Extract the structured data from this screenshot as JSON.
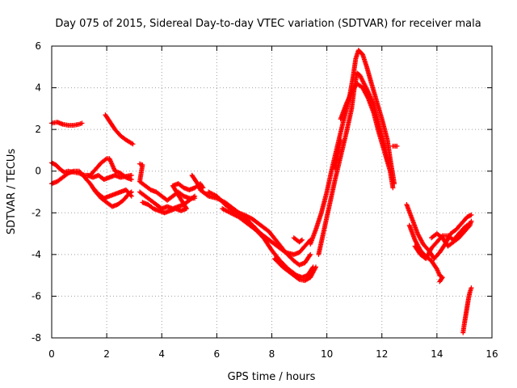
{
  "chart_data": {
    "type": "scatter",
    "title": "Day 075 of 2015, Sidereal Day-to-day VTEC variation (SDTVAR) for receiver mala",
    "xlabel": "GPS time / hours",
    "ylabel": "SDTVAR / TECUs",
    "xlim": [
      0,
      16
    ],
    "ylim": [
      -8,
      6
    ],
    "xticks": [
      "0",
      "2",
      "4",
      "6",
      "8",
      "10",
      "12",
      "14",
      "16"
    ],
    "yticks": [
      "-8",
      "-6",
      "-4",
      "-2",
      "0",
      "2",
      "4",
      "6"
    ],
    "grid": true,
    "marker": "+",
    "color": "#ff0000",
    "series": [
      {
        "values": [
          [
            0.0,
            2.3
          ],
          [
            0.2,
            2.35
          ],
          [
            0.4,
            2.25
          ],
          [
            0.6,
            2.2
          ],
          [
            0.8,
            2.2
          ],
          [
            1.0,
            2.25
          ],
          [
            1.1,
            2.3
          ],
          [
            1.95,
            2.7
          ],
          [
            2.1,
            2.4
          ],
          [
            2.3,
            2.0
          ],
          [
            2.5,
            1.7
          ],
          [
            2.7,
            1.5
          ],
          [
            2.95,
            1.3
          ]
        ]
      },
      {
        "values": [
          [
            0.0,
            0.4
          ],
          [
            0.15,
            0.3
          ],
          [
            0.3,
            0.1
          ],
          [
            0.45,
            -0.05
          ],
          [
            0.6,
            0.0
          ],
          [
            0.8,
            -0.05
          ],
          [
            1.0,
            -0.1
          ],
          [
            1.2,
            -0.2
          ],
          [
            1.4,
            -0.2
          ],
          [
            1.6,
            0.1
          ],
          [
            1.8,
            0.4
          ],
          [
            2.0,
            0.6
          ],
          [
            2.1,
            0.6
          ],
          [
            2.2,
            0.3
          ],
          [
            2.3,
            0.0
          ],
          [
            2.5,
            -0.1
          ],
          [
            2.7,
            -0.3
          ],
          [
            2.9,
            -0.4
          ]
        ]
      },
      {
        "values": [
          [
            0.0,
            -0.6
          ],
          [
            0.2,
            -0.5
          ],
          [
            0.4,
            -0.3
          ],
          [
            0.6,
            -0.1
          ],
          [
            0.8,
            0.0
          ],
          [
            1.0,
            0.0
          ],
          [
            1.2,
            -0.3
          ],
          [
            1.4,
            -0.6
          ],
          [
            1.6,
            -1.0
          ],
          [
            1.8,
            -1.3
          ],
          [
            2.0,
            -1.5
          ],
          [
            2.2,
            -1.7
          ],
          [
            2.4,
            -1.6
          ],
          [
            2.6,
            -1.4
          ],
          [
            2.8,
            -1.1
          ],
          [
            2.9,
            -1.0
          ]
        ]
      },
      {
        "values": [
          [
            1.3,
            -0.2
          ],
          [
            1.5,
            -0.3
          ],
          [
            1.7,
            -0.2
          ],
          [
            1.9,
            -0.4
          ],
          [
            2.1,
            -0.3
          ],
          [
            2.3,
            -0.2
          ],
          [
            2.5,
            -0.3
          ],
          [
            2.9,
            -0.2
          ],
          [
            1.5,
            -0.8
          ],
          [
            1.7,
            -1.1
          ],
          [
            1.9,
            -1.3
          ],
          [
            2.1,
            -1.2
          ],
          [
            2.3,
            -1.1
          ],
          [
            2.5,
            -1.0
          ],
          [
            2.7,
            -0.9
          ],
          [
            2.9,
            -1.2
          ]
        ]
      },
      {
        "values": [
          [
            3.2,
            0.35
          ],
          [
            3.3,
            0.3
          ],
          [
            3.2,
            -0.5
          ],
          [
            3.4,
            -0.7
          ],
          [
            3.6,
            -0.9
          ],
          [
            3.8,
            -1.0
          ],
          [
            4.0,
            -1.2
          ],
          [
            4.2,
            -1.4
          ],
          [
            4.4,
            -1.2
          ],
          [
            4.6,
            -1.0
          ],
          [
            4.8,
            -1.2
          ],
          [
            5.0,
            -1.3
          ],
          [
            5.2,
            -1.3
          ],
          [
            3.2,
            -1.0
          ],
          [
            3.4,
            -1.2
          ],
          [
            3.6,
            -1.4
          ],
          [
            3.8,
            -1.6
          ],
          [
            4.0,
            -1.8
          ],
          [
            4.2,
            -1.7
          ],
          [
            4.4,
            -1.8
          ],
          [
            4.6,
            -1.7
          ],
          [
            4.8,
            -1.6
          ],
          [
            5.0,
            -1.4
          ],
          [
            5.2,
            -1.2
          ],
          [
            3.3,
            -1.5
          ],
          [
            3.5,
            -1.6
          ],
          [
            3.7,
            -1.8
          ],
          [
            3.9,
            -1.9
          ],
          [
            4.1,
            -2.0
          ],
          [
            4.3,
            -1.9
          ],
          [
            4.5,
            -1.8
          ],
          [
            4.7,
            -1.9
          ],
          [
            4.9,
            -1.8
          ],
          [
            4.4,
            -0.7
          ],
          [
            4.6,
            -0.6
          ],
          [
            4.8,
            -0.8
          ],
          [
            5.0,
            -0.9
          ],
          [
            5.2,
            -0.8
          ],
          [
            5.4,
            -0.6
          ],
          [
            5.5,
            -0.8
          ]
        ]
      },
      {
        "values": [
          [
            5.1,
            -0.2
          ],
          [
            5.2,
            -0.4
          ],
          [
            5.3,
            -0.6
          ],
          [
            5.4,
            -0.9
          ],
          [
            5.7,
            -1.2
          ],
          [
            6.0,
            -1.3
          ],
          [
            6.3,
            -1.5
          ],
          [
            6.6,
            -1.8
          ],
          [
            7.0,
            -2.2
          ],
          [
            7.3,
            -2.6
          ],
          [
            7.6,
            -3.0
          ],
          [
            7.9,
            -3.3
          ],
          [
            8.2,
            -3.6
          ],
          [
            8.5,
            -3.9
          ],
          [
            8.8,
            -4.0
          ],
          [
            9.0,
            -3.9
          ],
          [
            9.2,
            -3.6
          ],
          [
            9.4,
            -3.3
          ],
          [
            5.7,
            -1.0
          ],
          [
            6.0,
            -1.2
          ],
          [
            6.3,
            -1.6
          ],
          [
            6.6,
            -1.9
          ],
          [
            7.0,
            -2.1
          ],
          [
            7.3,
            -2.3
          ],
          [
            7.6,
            -2.6
          ],
          [
            7.9,
            -2.9
          ],
          [
            8.2,
            -3.4
          ],
          [
            8.5,
            -3.9
          ],
          [
            8.8,
            -4.3
          ],
          [
            9.0,
            -4.5
          ],
          [
            9.2,
            -4.4
          ],
          [
            9.4,
            -4.0
          ],
          [
            6.2,
            -1.8
          ],
          [
            6.5,
            -2.0
          ],
          [
            6.8,
            -2.2
          ],
          [
            7.1,
            -2.5
          ],
          [
            7.4,
            -2.8
          ],
          [
            7.7,
            -3.2
          ],
          [
            8.0,
            -3.8
          ],
          [
            8.3,
            -4.3
          ],
          [
            8.6,
            -4.7
          ],
          [
            8.9,
            -5.0
          ],
          [
            9.1,
            -5.1
          ],
          [
            9.3,
            -5.0
          ],
          [
            9.5,
            -4.6
          ],
          [
            8.1,
            -4.2
          ],
          [
            8.4,
            -4.6
          ],
          [
            8.7,
            -4.9
          ],
          [
            9.0,
            -5.2
          ],
          [
            9.2,
            -5.25
          ],
          [
            9.4,
            -5.1
          ],
          [
            9.6,
            -4.6
          ],
          [
            8.8,
            -3.2
          ],
          [
            9.0,
            -3.4
          ],
          [
            9.1,
            -3.3
          ]
        ]
      },
      {
        "values": [
          [
            9.4,
            -3.5
          ],
          [
            9.6,
            -2.8
          ],
          [
            9.8,
            -2.0
          ],
          [
            10.0,
            -1.0
          ],
          [
            10.2,
            0.2
          ],
          [
            10.4,
            1.3
          ],
          [
            10.6,
            2.4
          ],
          [
            10.8,
            3.4
          ],
          [
            10.95,
            4.5
          ],
          [
            11.05,
            5.4
          ],
          [
            11.15,
            5.8
          ],
          [
            11.3,
            5.6
          ],
          [
            11.45,
            5.0
          ],
          [
            11.6,
            4.3
          ],
          [
            11.8,
            3.4
          ],
          [
            12.0,
            2.5
          ],
          [
            12.2,
            1.5
          ],
          [
            12.3,
            0.6
          ],
          [
            12.45,
            -0.6
          ],
          [
            9.7,
            -4.0
          ],
          [
            9.9,
            -2.8
          ],
          [
            10.1,
            -1.6
          ],
          [
            10.3,
            -0.4
          ],
          [
            10.5,
            0.7
          ],
          [
            10.7,
            1.8
          ],
          [
            10.9,
            3.0
          ],
          [
            11.0,
            4.0
          ],
          [
            11.1,
            4.7
          ],
          [
            11.2,
            4.6
          ],
          [
            11.35,
            4.2
          ],
          [
            11.5,
            3.8
          ],
          [
            11.7,
            3.2
          ],
          [
            11.9,
            2.2
          ],
          [
            12.1,
            1.2
          ],
          [
            12.25,
            0.3
          ],
          [
            10.5,
            2.5
          ],
          [
            10.7,
            3.2
          ],
          [
            10.9,
            3.8
          ],
          [
            11.1,
            4.2
          ],
          [
            11.3,
            4.0
          ],
          [
            11.5,
            3.5
          ],
          [
            11.7,
            2.8
          ],
          [
            11.9,
            1.8
          ],
          [
            12.1,
            0.9
          ],
          [
            12.3,
            0.0
          ],
          [
            12.4,
            -0.8
          ],
          [
            10.3,
            0.1
          ],
          [
            10.5,
            1.5
          ],
          [
            12.4,
            1.2
          ],
          [
            12.55,
            1.2
          ]
        ]
      },
      {
        "values": [
          [
            12.9,
            -1.6
          ],
          [
            13.1,
            -2.3
          ],
          [
            13.3,
            -3.0
          ],
          [
            13.5,
            -3.5
          ],
          [
            13.7,
            -3.8
          ],
          [
            13.9,
            -4.2
          ],
          [
            14.1,
            -3.9
          ],
          [
            14.3,
            -3.5
          ],
          [
            14.5,
            -3.0
          ],
          [
            14.7,
            -2.8
          ],
          [
            14.9,
            -2.5
          ],
          [
            15.1,
            -2.2
          ],
          [
            15.25,
            -2.1
          ],
          [
            13.0,
            -2.6
          ],
          [
            13.2,
            -3.3
          ],
          [
            13.4,
            -3.8
          ],
          [
            13.6,
            -4.1
          ],
          [
            13.8,
            -4.3
          ],
          [
            14.0,
            -4.7
          ],
          [
            14.1,
            -5.0
          ],
          [
            14.2,
            -5.1
          ],
          [
            14.1,
            -5.3
          ],
          [
            13.2,
            -3.6
          ],
          [
            13.4,
            -4.0
          ],
          [
            13.6,
            -4.2
          ],
          [
            13.8,
            -3.7
          ],
          [
            14.0,
            -3.4
          ],
          [
            14.2,
            -3.1
          ],
          [
            14.4,
            -3.1
          ],
          [
            14.6,
            -3.3
          ],
          [
            14.8,
            -3.0
          ],
          [
            15.0,
            -2.7
          ],
          [
            15.2,
            -2.5
          ],
          [
            13.8,
            -3.2
          ],
          [
            14.0,
            -3.0
          ],
          [
            14.2,
            -3.2
          ],
          [
            14.4,
            -3.6
          ],
          [
            14.6,
            -3.4
          ],
          [
            14.8,
            -3.2
          ],
          [
            15.0,
            -2.9
          ],
          [
            15.2,
            -2.6
          ],
          [
            15.25,
            -2.4
          ]
        ]
      },
      {
        "values": [
          [
            14.95,
            -7.75
          ],
          [
            15.0,
            -7.3
          ],
          [
            15.05,
            -6.9
          ],
          [
            15.1,
            -6.5
          ],
          [
            15.15,
            -6.1
          ],
          [
            15.2,
            -5.8
          ],
          [
            15.25,
            -5.6
          ]
        ]
      }
    ]
  }
}
